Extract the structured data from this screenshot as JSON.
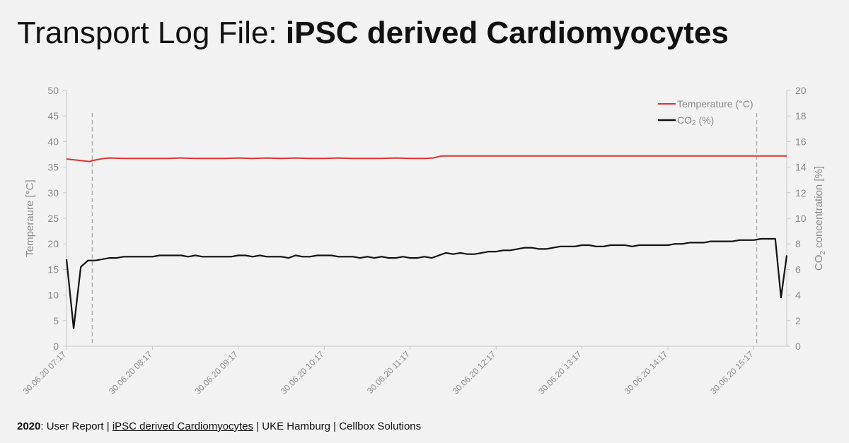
{
  "header": {
    "title_prefix": "Transport Log File: ",
    "title_bold": "iPSC derived Cardiomyocytes"
  },
  "footer": {
    "year": "2020",
    "part1": ": User Report | ",
    "link": "iPSC derived Cardiomyocytes",
    "part2": "  | UKE Hamburg | Cellbox Solutions"
  },
  "colors": {
    "temperature": "#e03030",
    "co2": "#111111",
    "axis_text": "#8a8a8a",
    "marker": "#b0b0b0"
  },
  "chart_data": {
    "type": "line",
    "title": "",
    "ylabel": "Temperaure [°C]",
    "y2label_main": "CO",
    "y2label_sub": "2",
    "y2label_rest": " concentration [%]",
    "ylim": [
      0,
      50
    ],
    "y2lim": [
      0,
      20
    ],
    "yticks": [
      "0",
      "5",
      "10",
      "15",
      "20",
      "25",
      "30",
      "35",
      "40",
      "45",
      "50"
    ],
    "y2ticks": [
      "0",
      "2",
      "4",
      "6",
      "8",
      "10",
      "12",
      "14",
      "16",
      "18",
      "20"
    ],
    "xticks": [
      "30.06.20 07:17",
      "30.06.20 08:17",
      "30.06.20 09:17",
      "30.06.20 10:17",
      "30.06.20 11:17",
      "30.06.20 12:17",
      "30.06.20 13:17",
      "30.06.20 14:17",
      "30.06.20 15:17"
    ],
    "xlim_minutes": [
      0,
      503
    ],
    "markers_minutes": [
      18,
      482
    ],
    "legend_position": "top-right",
    "grid": false,
    "series": [
      {
        "name": "Temperature (°C)",
        "axis": "left",
        "x_minutes": [
          0,
          10,
          16,
          20,
          26,
          30,
          40,
          60,
          70,
          80,
          90,
          100,
          110,
          120,
          130,
          140,
          150,
          160,
          170,
          180,
          190,
          200,
          210,
          220,
          230,
          240,
          250,
          256,
          262,
          503
        ],
        "y": [
          36.6,
          36.3,
          36.1,
          36.4,
          36.7,
          36.8,
          36.7,
          36.7,
          36.7,
          36.8,
          36.7,
          36.7,
          36.7,
          36.8,
          36.7,
          36.8,
          36.7,
          36.8,
          36.7,
          36.7,
          36.8,
          36.7,
          36.7,
          36.7,
          36.8,
          36.7,
          36.7,
          36.8,
          37.2,
          37.2
        ]
      },
      {
        "name": "CO",
        "name_sub": "2",
        "name_rest": " (%)",
        "axis": "right",
        "x_minutes": [
          0,
          5,
          10,
          15,
          20,
          25,
          30,
          35,
          40,
          45,
          50,
          55,
          60,
          65,
          70,
          75,
          80,
          85,
          90,
          95,
          100,
          105,
          110,
          115,
          120,
          125,
          130,
          135,
          140,
          145,
          150,
          155,
          160,
          165,
          170,
          175,
          180,
          185,
          190,
          195,
          200,
          205,
          210,
          215,
          220,
          225,
          230,
          235,
          240,
          245,
          250,
          255,
          260,
          265,
          270,
          275,
          280,
          285,
          290,
          295,
          300,
          305,
          310,
          315,
          320,
          325,
          330,
          335,
          340,
          345,
          350,
          355,
          360,
          365,
          370,
          375,
          380,
          385,
          390,
          395,
          400,
          405,
          410,
          415,
          420,
          425,
          430,
          435,
          440,
          445,
          450,
          455,
          460,
          465,
          470,
          475,
          480,
          485,
          490,
          495,
          499,
          503
        ],
        "y": [
          6.8,
          1.4,
          6.2,
          6.7,
          6.7,
          6.8,
          6.9,
          6.9,
          7.0,
          7.0,
          7.0,
          7.0,
          7.0,
          7.1,
          7.1,
          7.1,
          7.1,
          7.0,
          7.1,
          7.0,
          7.0,
          7.0,
          7.0,
          7.0,
          7.1,
          7.1,
          7.0,
          7.1,
          7.0,
          7.0,
          7.0,
          6.9,
          7.1,
          7.0,
          7.0,
          7.1,
          7.1,
          7.1,
          7.0,
          7.0,
          7.0,
          6.9,
          7.0,
          6.9,
          7.0,
          6.9,
          6.9,
          7.0,
          6.9,
          6.9,
          7.0,
          6.9,
          7.1,
          7.3,
          7.2,
          7.3,
          7.2,
          7.2,
          7.3,
          7.4,
          7.4,
          7.5,
          7.5,
          7.6,
          7.7,
          7.7,
          7.6,
          7.6,
          7.7,
          7.8,
          7.8,
          7.8,
          7.9,
          7.9,
          7.8,
          7.8,
          7.9,
          7.9,
          7.9,
          7.8,
          7.9,
          7.9,
          7.9,
          7.9,
          7.9,
          8.0,
          8.0,
          8.1,
          8.1,
          8.1,
          8.2,
          8.2,
          8.2,
          8.2,
          8.3,
          8.3,
          8.3,
          8.4,
          8.4,
          8.4,
          3.8,
          7.1
        ]
      }
    ]
  }
}
